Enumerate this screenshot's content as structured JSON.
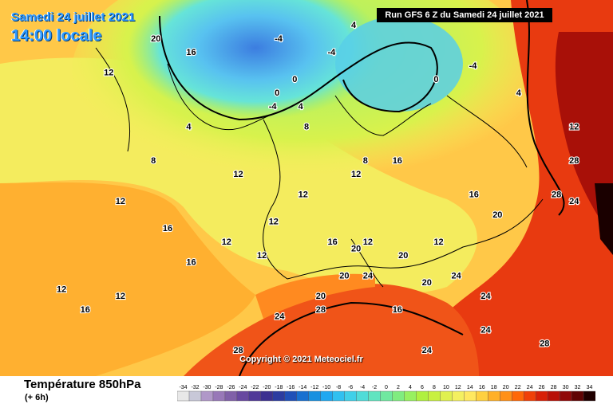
{
  "header": {
    "date_label": "Samedi 24 juillet 2021",
    "time_label": "14:00 locale",
    "run_label": "Run GFS 6 Z du Samedi 24 juillet 2021"
  },
  "copyright": "Copyright © 2021 Meteociel.fr",
  "footer": {
    "title": "Température 850hPa",
    "subtitle": "(+ 6h)"
  },
  "legend": {
    "ticks": [
      "-34",
      "-32",
      "-30",
      "-28",
      "-26",
      "-24",
      "-22",
      "-20",
      "-18",
      "-16",
      "-14",
      "-12",
      "-10",
      "-8",
      "-6",
      "-4",
      "-2",
      "0",
      "2",
      "4",
      "6",
      "8",
      "10",
      "12",
      "14",
      "16",
      "18",
      "20",
      "22",
      "24",
      "26",
      "28",
      "30",
      "32",
      "34"
    ],
    "colors": [
      "#e8e8e8",
      "#c8c8d8",
      "#b098c8",
      "#9878b8",
      "#8060a8",
      "#6848a0",
      "#503898",
      "#3c3090",
      "#2c3ca0",
      "#2050b8",
      "#1870d0",
      "#1890e0",
      "#20a8f0",
      "#30c0f0",
      "#40d0e8",
      "#50dcd8",
      "#60e4c0",
      "#70e8a0",
      "#80ec80",
      "#98f060",
      "#b0f040",
      "#c8f040",
      "#e0f050",
      "#f4f060",
      "#ffe860",
      "#ffd040",
      "#ffb028",
      "#ff9018",
      "#ff6808",
      "#f04008",
      "#d82008",
      "#b81008",
      "#900808",
      "#600404",
      "#200000"
    ]
  },
  "map_labels": [
    {
      "text": "12",
      "lat": 63,
      "lon": -24
    },
    {
      "text": "16",
      "lat": 66,
      "lon": -10
    },
    {
      "text": "20",
      "lat": 68,
      "lon": -16
    },
    {
      "text": "-4",
      "lat": 68,
      "lon": 5
    },
    {
      "text": "4",
      "lat": 70,
      "lon": 18
    },
    {
      "text": "-4",
      "lat": 66,
      "lon": 14
    },
    {
      "text": "0",
      "lat": 62,
      "lon": 8
    },
    {
      "text": "0",
      "lat": 60,
      "lon": 5
    },
    {
      "text": "-4",
      "lat": 58,
      "lon": 4
    },
    {
      "text": "4",
      "lat": 58,
      "lon": 9
    },
    {
      "text": "0",
      "lat": 62,
      "lon": 32
    },
    {
      "text": "-4",
      "lat": 64,
      "lon": 38
    },
    {
      "text": "4",
      "lat": 60,
      "lon": 46
    },
    {
      "text": "12",
      "lat": 55,
      "lon": 55
    },
    {
      "text": "4",
      "lat": 55,
      "lon": -10
    },
    {
      "text": "8",
      "lat": 50,
      "lon": -16
    },
    {
      "text": "12",
      "lat": 44,
      "lon": -22
    },
    {
      "text": "8",
      "lat": 55,
      "lon": 10
    },
    {
      "text": "8",
      "lat": 50,
      "lon": 20
    },
    {
      "text": "12",
      "lat": 48,
      "lon": -2
    },
    {
      "text": "16",
      "lat": 50,
      "lon": 25
    },
    {
      "text": "12",
      "lat": 48,
      "lon": 18
    },
    {
      "text": "12",
      "lat": 45,
      "lon": 9
    },
    {
      "text": "12",
      "lat": 41,
      "lon": 4
    },
    {
      "text": "16",
      "lat": 40,
      "lon": -14
    },
    {
      "text": "16",
      "lat": 35,
      "lon": -10
    },
    {
      "text": "12",
      "lat": 38,
      "lon": -4
    },
    {
      "text": "12",
      "lat": 36,
      "lon": 2
    },
    {
      "text": "12",
      "lat": 38,
      "lon": 20
    },
    {
      "text": "16",
      "lat": 38,
      "lon": 14
    },
    {
      "text": "16",
      "lat": 45,
      "lon": 38
    },
    {
      "text": "20",
      "lat": 42,
      "lon": 42
    },
    {
      "text": "12",
      "lat": 38,
      "lon": 32
    },
    {
      "text": "20",
      "lat": 37,
      "lon": 18
    },
    {
      "text": "20",
      "lat": 33,
      "lon": 16
    },
    {
      "text": "20",
      "lat": 36,
      "lon": 26
    },
    {
      "text": "24",
      "lat": 33,
      "lon": 20
    },
    {
      "text": "24",
      "lat": 33,
      "lon": 35
    },
    {
      "text": "20",
      "lat": 32,
      "lon": 30
    },
    {
      "text": "28",
      "lat": 50,
      "lon": 55
    },
    {
      "text": "28",
      "lat": 45,
      "lon": 52
    },
    {
      "text": "24",
      "lat": 44,
      "lon": 55
    },
    {
      "text": "24",
      "lat": 30,
      "lon": 40
    },
    {
      "text": "28",
      "lat": 28,
      "lon": 12
    },
    {
      "text": "20",
      "lat": 30,
      "lon": 12
    },
    {
      "text": "24",
      "lat": 27,
      "lon": 5
    },
    {
      "text": "16",
      "lat": 28,
      "lon": 25
    },
    {
      "text": "12",
      "lat": 30,
      "lon": -22
    },
    {
      "text": "16",
      "lat": 28,
      "lon": -28
    },
    {
      "text": "12",
      "lat": 31,
      "lon": -32
    },
    {
      "text": "24",
      "lat": 25,
      "lon": 40
    },
    {
      "text": "28",
      "lat": 23,
      "lon": 50
    },
    {
      "text": "28",
      "lat": 22,
      "lon": -2
    },
    {
      "text": "24",
      "lat": 22,
      "lon": 30
    }
  ]
}
